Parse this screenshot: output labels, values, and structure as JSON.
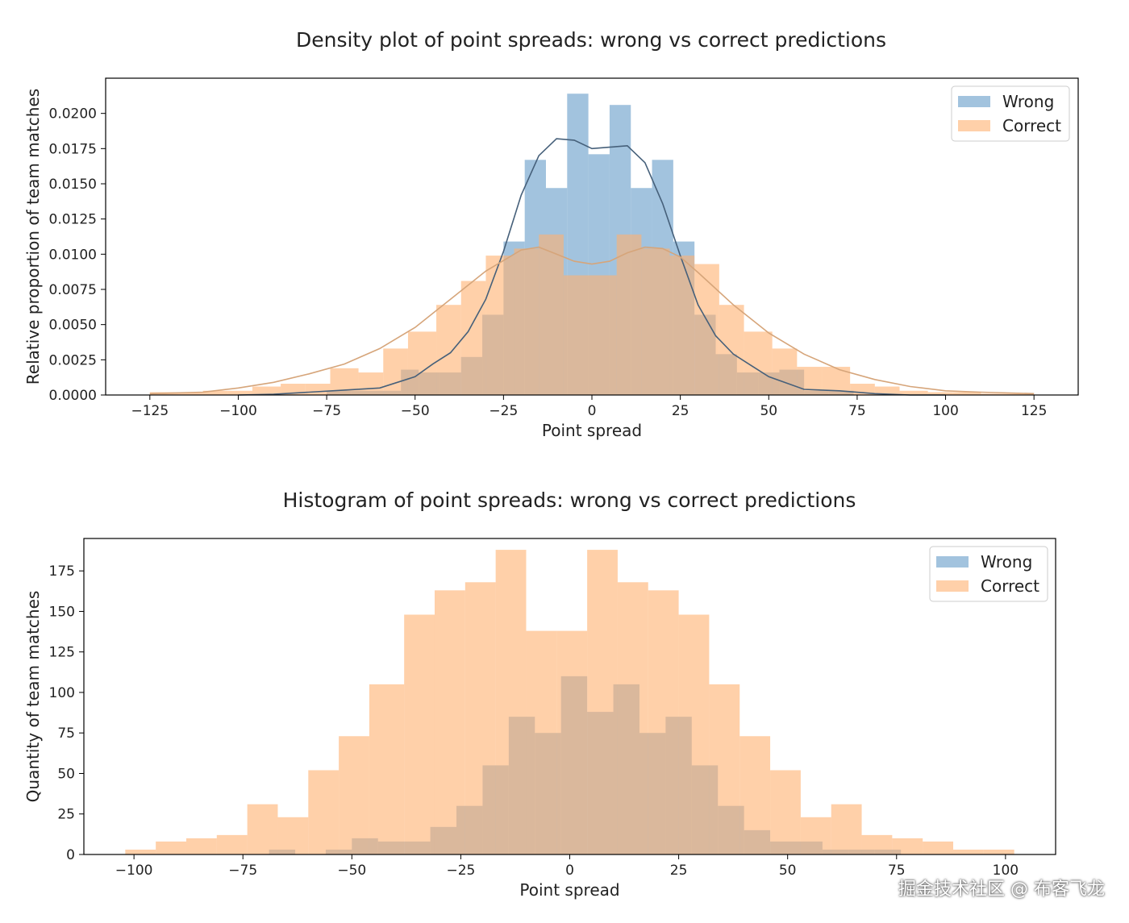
{
  "chart_data": [
    {
      "type": "histogram-density",
      "title": "Density plot of point spreads: wrong vs correct predictions",
      "xlabel": "Point spread",
      "ylabel": "Relative proportion of team matches",
      "xlim": [
        -137.5,
        137.5
      ],
      "ylim": [
        0,
        0.0225
      ],
      "xticks": [
        -125,
        -100,
        -75,
        -50,
        -25,
        0,
        25,
        50,
        75,
        100,
        125
      ],
      "xtick_labels": [
        "−125",
        "−100",
        "−75",
        "−50",
        "−25",
        "0",
        "25",
        "50",
        "75",
        "100",
        "125"
      ],
      "yticks": [
        0,
        0.0025,
        0.005,
        0.0075,
        0.01,
        0.0125,
        0.015,
        0.0175,
        0.02
      ],
      "ytick_labels": [
        "0.0000",
        "0.0025",
        "0.0050",
        "0.0075",
        "0.0100",
        "0.0125",
        "0.0150",
        "0.0175",
        "0.0200"
      ],
      "legend": {
        "position": "top-right",
        "entries": [
          "Wrong",
          "Correct"
        ]
      },
      "grid": false,
      "series": [
        {
          "name": "Wrong",
          "color": "#7ba9d0",
          "opacity": 0.7,
          "bins": [
            [
              -75,
              -68,
              0.0003
            ],
            [
              -68,
              -61,
              0.0003
            ],
            [
              -61,
              -54,
              0.0003
            ],
            [
              -54,
              -49,
              0.0018
            ],
            [
              -49,
              -43,
              0.0016
            ],
            [
              -43,
              -37,
              0.0016
            ],
            [
              -37,
              -31,
              0.0027
            ],
            [
              -31,
              -25,
              0.0057
            ],
            [
              -25,
              -19,
              0.0109
            ],
            [
              -19,
              -13,
              0.0167
            ],
            [
              -13,
              -7,
              0.0147
            ],
            [
              -7,
              -1,
              0.0214
            ],
            [
              -1,
              5,
              0.0171
            ],
            [
              5,
              11,
              0.0206
            ],
            [
              11,
              17,
              0.0147
            ],
            [
              17,
              23,
              0.0167
            ],
            [
              23,
              29,
              0.0109
            ],
            [
              29,
              35,
              0.0057
            ],
            [
              35,
              41,
              0.0029
            ],
            [
              41,
              47,
              0.0016
            ],
            [
              47,
              53,
              0.0016
            ],
            [
              53,
              60,
              0.0018
            ],
            [
              60,
              67,
              0.0003
            ],
            [
              67,
              74,
              0.0003
            ]
          ],
          "kde": [
            [
              -100,
              0.0
            ],
            [
              -90,
              5e-05
            ],
            [
              -80,
              0.0002
            ],
            [
              -70,
              0.00035
            ],
            [
              -60,
              0.0005
            ],
            [
              -50,
              0.0013
            ],
            [
              -45,
              0.0022
            ],
            [
              -40,
              0.003
            ],
            [
              -35,
              0.0045
            ],
            [
              -30,
              0.0068
            ],
            [
              -25,
              0.0102
            ],
            [
              -20,
              0.0142
            ],
            [
              -15,
              0.017
            ],
            [
              -10,
              0.0182
            ],
            [
              -5,
              0.0181
            ],
            [
              0,
              0.0175
            ],
            [
              5,
              0.0176
            ],
            [
              10,
              0.0177
            ],
            [
              15,
              0.0165
            ],
            [
              20,
              0.0136
            ],
            [
              25,
              0.0099
            ],
            [
              30,
              0.0064
            ],
            [
              35,
              0.0042
            ],
            [
              40,
              0.0029
            ],
            [
              45,
              0.0021
            ],
            [
              50,
              0.0013
            ],
            [
              60,
              0.0004
            ],
            [
              70,
              0.0003
            ],
            [
              80,
              0.0001
            ],
            [
              90,
              0.0
            ],
            [
              100,
              0.0
            ]
          ]
        },
        {
          "name": "Correct",
          "color": "#ffb070",
          "opacity": 0.6,
          "bins": [
            [
              -125,
              -118,
              0.0002
            ],
            [
              -118,
              -110,
              0.0002
            ],
            [
              -110,
              -103,
              0.0003
            ],
            [
              -103,
              -96,
              0.0003
            ],
            [
              -96,
              -88,
              0.0006
            ],
            [
              -88,
              -81,
              0.0008
            ],
            [
              -81,
              -74,
              0.0008
            ],
            [
              -74,
              -66,
              0.0019
            ],
            [
              -66,
              -59,
              0.0016
            ],
            [
              -59,
              -52,
              0.0033
            ],
            [
              -52,
              -44,
              0.0045
            ],
            [
              -44,
              -37,
              0.0064
            ],
            [
              -37,
              -30,
              0.0081
            ],
            [
              -30,
              -22,
              0.0099
            ],
            [
              -22,
              -15,
              0.0104
            ],
            [
              -15,
              -8,
              0.0114
            ],
            [
              -8,
              0,
              0.0085
            ],
            [
              0,
              7,
              0.0085
            ],
            [
              7,
              14,
              0.0114
            ],
            [
              14,
              22,
              0.0104
            ],
            [
              22,
              29,
              0.0099
            ],
            [
              29,
              36,
              0.0093
            ],
            [
              36,
              43,
              0.0064
            ],
            [
              43,
              51,
              0.0045
            ],
            [
              51,
              58,
              0.0033
            ],
            [
              58,
              65,
              0.002
            ],
            [
              65,
              73,
              0.002
            ],
            [
              73,
              80,
              0.0008
            ],
            [
              80,
              87,
              0.0006
            ],
            [
              87,
              95,
              0.0003
            ],
            [
              95,
              102,
              0.0002
            ],
            [
              102,
              110,
              0.0002
            ],
            [
              110,
              117,
              0.0001
            ],
            [
              117,
              125,
              0.0001
            ]
          ],
          "kde": [
            [
              -125,
              0.0001
            ],
            [
              -110,
              0.0002
            ],
            [
              -100,
              0.0005
            ],
            [
              -90,
              0.0009
            ],
            [
              -80,
              0.0015
            ],
            [
              -70,
              0.0022
            ],
            [
              -60,
              0.0033
            ],
            [
              -50,
              0.0048
            ],
            [
              -40,
              0.0068
            ],
            [
              -30,
              0.0088
            ],
            [
              -20,
              0.0103
            ],
            [
              -15,
              0.0105
            ],
            [
              -10,
              0.01
            ],
            [
              -5,
              0.0095
            ],
            [
              0,
              0.0093
            ],
            [
              5,
              0.0095
            ],
            [
              10,
              0.0101
            ],
            [
              15,
              0.0105
            ],
            [
              20,
              0.0104
            ],
            [
              25,
              0.0098
            ],
            [
              30,
              0.0087
            ],
            [
              40,
              0.0064
            ],
            [
              50,
              0.0044
            ],
            [
              60,
              0.0029
            ],
            [
              70,
              0.0018
            ],
            [
              80,
              0.0011
            ],
            [
              90,
              0.0006
            ],
            [
              100,
              0.0003
            ],
            [
              110,
              0.0002
            ],
            [
              125,
              0.0001
            ]
          ]
        }
      ]
    },
    {
      "type": "histogram",
      "title": "Histogram of point spreads: wrong vs correct predictions",
      "xlabel": "Point spread",
      "ylabel": "Quantity of team matches",
      "xlim": [
        -111.5,
        111.5
      ],
      "ylim": [
        0,
        195
      ],
      "xticks": [
        -100,
        -75,
        -50,
        -25,
        0,
        25,
        50,
        75,
        100
      ],
      "xtick_labels": [
        "−100",
        "−75",
        "−50",
        "−25",
        "0",
        "25",
        "50",
        "75",
        "100"
      ],
      "yticks": [
        0,
        25,
        50,
        75,
        100,
        125,
        150,
        175
      ],
      "ytick_labels": [
        "0",
        "25",
        "50",
        "75",
        "100",
        "125",
        "150",
        "175"
      ],
      "legend": {
        "position": "top-right",
        "entries": [
          "Wrong",
          "Correct"
        ]
      },
      "grid": false,
      "series": [
        {
          "name": "Wrong",
          "color": "#7ba9d0",
          "opacity": 0.7,
          "bins": [
            [
              -69,
              -63,
              3
            ],
            [
              -56,
              -50,
              3
            ],
            [
              -50,
              -44,
              10
            ],
            [
              -44,
              -38,
              8
            ],
            [
              -38,
              -32,
              8
            ],
            [
              -32,
              -26,
              17
            ],
            [
              -26,
              -20,
              30
            ],
            [
              -20,
              -14,
              55
            ],
            [
              -14,
              -8,
              85
            ],
            [
              -8,
              -2,
              75
            ],
            [
              -2,
              4,
              110
            ],
            [
              4,
              10,
              88
            ],
            [
              10,
              16,
              105
            ],
            [
              16,
              22,
              75
            ],
            [
              22,
              28,
              85
            ],
            [
              28,
              34,
              55
            ],
            [
              34,
              40,
              30
            ],
            [
              40,
              46,
              15
            ],
            [
              46,
              52,
              8
            ],
            [
              52,
              58,
              8
            ],
            [
              58,
              64,
              3
            ],
            [
              64,
              70,
              3
            ],
            [
              70,
              76,
              3
            ]
          ]
        },
        {
          "name": "Correct",
          "color": "#ffb070",
          "opacity": 0.6,
          "bins": [
            [
              -102,
              -95,
              3
            ],
            [
              -95,
              -88,
              8
            ],
            [
              -88,
              -81,
              10
            ],
            [
              -81,
              -74,
              12
            ],
            [
              -74,
              -67,
              31
            ],
            [
              -67,
              -60,
              23
            ],
            [
              -60,
              -53,
              52
            ],
            [
              -53,
              -46,
              73
            ],
            [
              -46,
              -38,
              105
            ],
            [
              -38,
              -31,
              148
            ],
            [
              -31,
              -24,
              163
            ],
            [
              -24,
              -17,
              168
            ],
            [
              -17,
              -10,
              188
            ],
            [
              -10,
              -3,
              138
            ],
            [
              -3,
              4,
              138
            ],
            [
              4,
              11,
              188
            ],
            [
              11,
              18,
              168
            ],
            [
              18,
              25,
              163
            ],
            [
              25,
              32,
              148
            ],
            [
              32,
              39,
              105
            ],
            [
              39,
              46,
              73
            ],
            [
              46,
              53,
              52
            ],
            [
              53,
              60,
              23
            ],
            [
              60,
              67,
              31
            ],
            [
              67,
              74,
              12
            ],
            [
              74,
              81,
              10
            ],
            [
              81,
              88,
              8
            ],
            [
              88,
              95,
              3
            ],
            [
              95,
              102,
              3
            ]
          ]
        }
      ]
    }
  ],
  "watermark": "掘金技术社区 @ 布客飞龙"
}
